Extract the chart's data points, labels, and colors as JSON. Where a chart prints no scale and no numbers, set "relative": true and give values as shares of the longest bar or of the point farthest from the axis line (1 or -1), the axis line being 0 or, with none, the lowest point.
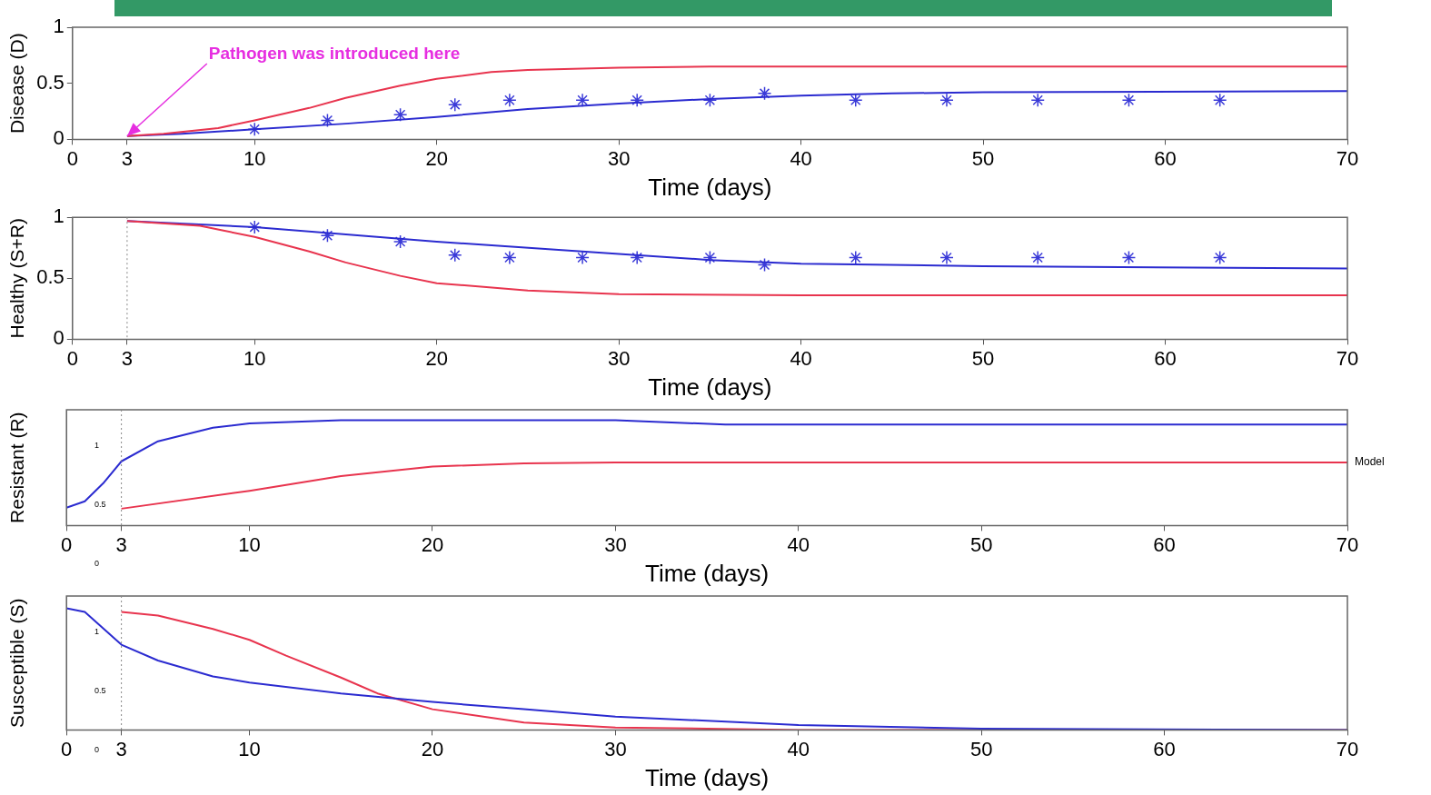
{
  "chart_data": [
    {
      "type": "line",
      "xlabel": "Time (days)",
      "ylabel": "Disease (D)",
      "xlim": [
        0,
        70
      ],
      "xticks": [
        0,
        3,
        10,
        20,
        30,
        40,
        50,
        60,
        70
      ],
      "ylim": [
        0,
        1
      ],
      "yticks": [
        0,
        0.5,
        1
      ],
      "annotations": [
        {
          "text": "Pathogen was introduced here",
          "x": 3,
          "y": 0.03
        }
      ],
      "series": [
        {
          "color": "#e8344e",
          "marker": "none",
          "x": [
            3,
            5,
            8,
            10,
            13,
            15,
            18,
            20,
            23,
            25,
            30,
            35,
            70
          ],
          "values": [
            0.03,
            0.05,
            0.1,
            0.17,
            0.28,
            0.37,
            0.48,
            0.54,
            0.6,
            0.62,
            0.64,
            0.65,
            0.65
          ]
        },
        {
          "color": "#2b2bd0",
          "marker": "none",
          "x": [
            3,
            6,
            10,
            15,
            20,
            25,
            30,
            35,
            40,
            45,
            50,
            70
          ],
          "values": [
            0.03,
            0.05,
            0.09,
            0.14,
            0.2,
            0.27,
            0.32,
            0.36,
            0.39,
            0.41,
            0.42,
            0.43
          ]
        },
        {
          "type": "scatter",
          "color": "#3a3ad8",
          "marker": "cross",
          "x": [
            10,
            14,
            18,
            21,
            24,
            28,
            31,
            35,
            38,
            43,
            48,
            53,
            58,
            63
          ],
          "values": [
            0.09,
            0.17,
            0.22,
            0.31,
            0.35,
            0.35,
            0.35,
            0.35,
            0.41,
            0.35,
            0.35,
            0.35,
            0.35,
            0.35
          ]
        }
      ]
    },
    {
      "type": "line",
      "xlabel": "Time (days)",
      "ylabel": "Healthy (S+R)",
      "xlim": [
        0,
        70
      ],
      "xticks": [
        0,
        3,
        10,
        20,
        30,
        40,
        50,
        60,
        70
      ],
      "ylim": [
        0,
        1
      ],
      "yticks": [
        0,
        0.5,
        1
      ],
      "ref_lines": [
        {
          "axis": "x",
          "value": 3,
          "color": "#888888",
          "line_style": "dotted"
        }
      ],
      "series": [
        {
          "color": "#e8344e",
          "marker": "none",
          "x": [
            3,
            7,
            10,
            13,
            15,
            18,
            20,
            25,
            30,
            40,
            70
          ],
          "values": [
            0.97,
            0.93,
            0.84,
            0.72,
            0.63,
            0.52,
            0.46,
            0.4,
            0.37,
            0.36,
            0.36
          ]
        },
        {
          "color": "#2b2bd0",
          "marker": "none",
          "x": [
            3,
            10,
            20,
            30,
            35,
            40,
            50,
            70
          ],
          "values": [
            0.97,
            0.92,
            0.8,
            0.7,
            0.65,
            0.62,
            0.6,
            0.58
          ]
        },
        {
          "type": "scatter",
          "color": "#3a3ad8",
          "marker": "cross",
          "x": [
            10,
            14,
            18,
            21,
            24,
            28,
            31,
            35,
            38,
            43,
            48,
            53,
            58,
            63
          ],
          "values": [
            0.92,
            0.85,
            0.8,
            0.69,
            0.67,
            0.67,
            0.67,
            0.67,
            0.61,
            0.67,
            0.67,
            0.67,
            0.67,
            0.67
          ]
        }
      ]
    },
    {
      "type": "line",
      "relative": true,
      "xlabel": "Time (days)",
      "ylabel": "Resistant (R)",
      "xlim": [
        0,
        70
      ],
      "xticks": [
        0,
        3,
        10,
        20,
        30,
        40,
        50,
        60,
        70
      ],
      "annotations": [
        "1",
        "0.5",
        "0"
      ],
      "ref_lines": [
        {
          "axis": "x",
          "value": 3,
          "color": "#888888",
          "line_style": "dotted"
        }
      ],
      "series": [
        {
          "color": "#2b2bd0",
          "marker": "none",
          "x": [
            0,
            1,
            2,
            3,
            5,
            8,
            10,
            15,
            30,
            36,
            70
          ],
          "values": [
            0.17,
            0.23,
            0.4,
            0.61,
            0.8,
            0.93,
            0.97,
            1,
            1,
            0.96,
            0.96
          ]
        },
        {
          "name": "Model",
          "color": "#e8344e",
          "marker": "none",
          "x": [
            3,
            10,
            15,
            20,
            25,
            30,
            70
          ],
          "values": [
            0.16,
            0.33,
            0.47,
            0.56,
            0.59,
            0.6,
            0.6
          ]
        }
      ]
    },
    {
      "type": "line",
      "relative": true,
      "xlabel": "Time (days)",
      "ylabel": "Susceptible (S)",
      "xlim": [
        0,
        70
      ],
      "xticks": [
        0,
        3,
        10,
        20,
        30,
        40,
        50,
        60,
        70
      ],
      "annotations": [
        "1",
        "0.5",
        "0"
      ],
      "ref_lines": [
        {
          "axis": "x",
          "value": 3,
          "color": "#888888",
          "line_style": "dotted"
        }
      ],
      "series": [
        {
          "color": "#2b2bd0",
          "marker": "none",
          "x": [
            0,
            1,
            3,
            5,
            8,
            10,
            15,
            20,
            25,
            30,
            40,
            50,
            70
          ],
          "values": [
            1,
            0.97,
            0.7,
            0.57,
            0.44,
            0.39,
            0.3,
            0.23,
            0.17,
            0.11,
            0.04,
            0.01,
            0
          ]
        },
        {
          "color": "#e8344e",
          "marker": "none",
          "x": [
            3,
            5,
            8,
            10,
            12,
            15,
            17,
            20,
            25,
            30,
            40,
            70
          ],
          "values": [
            0.97,
            0.94,
            0.83,
            0.74,
            0.61,
            0.43,
            0.3,
            0.17,
            0.06,
            0.02,
            0,
            0
          ]
        }
      ]
    }
  ]
}
